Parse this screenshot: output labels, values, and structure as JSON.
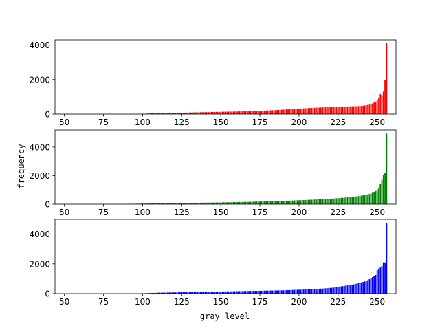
{
  "figure": {
    "xlabel": "gray level",
    "ylabel": "frequency"
  },
  "chart_data": [
    {
      "type": "bar",
      "color": "#ff0000",
      "xlim": [
        44,
        262
      ],
      "ylim": [
        0,
        4300
      ],
      "xticks": [
        50,
        75,
        100,
        125,
        150,
        175,
        200,
        225,
        250
      ],
      "yticks": [
        0,
        2000,
        4000
      ],
      "profile": [
        [
          97,
          0
        ],
        [
          100,
          10
        ],
        [
          105,
          40
        ],
        [
          110,
          55
        ],
        [
          120,
          70
        ],
        [
          130,
          90
        ],
        [
          150,
          130
        ],
        [
          170,
          170
        ],
        [
          185,
          230
        ],
        [
          200,
          320
        ],
        [
          215,
          390
        ],
        [
          230,
          440
        ],
        [
          240,
          470
        ],
        [
          246,
          560
        ],
        [
          249,
          720
        ],
        [
          251,
          950
        ],
        [
          252,
          1150
        ],
        [
          253,
          1100
        ],
        [
          254,
          1300
        ],
        [
          255,
          1950
        ],
        [
          256,
          4100
        ]
      ],
      "x_range": [
        97,
        256
      ]
    },
    {
      "type": "bar",
      "color": "#008000",
      "xlim": [
        44,
        262
      ],
      "ylim": [
        0,
        5200
      ],
      "xticks": [
        50,
        75,
        100,
        125,
        150,
        175,
        200,
        225,
        250
      ],
      "yticks": [
        0,
        2000,
        4000
      ],
      "profile": [
        [
          84,
          0
        ],
        [
          90,
          10
        ],
        [
          100,
          40
        ],
        [
          110,
          55
        ],
        [
          125,
          80
        ],
        [
          150,
          120
        ],
        [
          170,
          170
        ],
        [
          190,
          230
        ],
        [
          205,
          300
        ],
        [
          215,
          350
        ],
        [
          225,
          420
        ],
        [
          235,
          520
        ],
        [
          243,
          650
        ],
        [
          246,
          750
        ],
        [
          248,
          850
        ],
        [
          250,
          1000
        ],
        [
          251,
          1150
        ],
        [
          252,
          1400
        ],
        [
          253,
          1700
        ],
        [
          254,
          2050
        ],
        [
          255,
          2200
        ],
        [
          256,
          4950
        ]
      ],
      "x_range": [
        84,
        256
      ]
    },
    {
      "type": "bar",
      "color": "#0000ff",
      "xlim": [
        44,
        262
      ],
      "ylim": [
        0,
        5000
      ],
      "xticks": [
        50,
        75,
        100,
        125,
        150,
        175,
        200,
        225,
        250
      ],
      "yticks": [
        0,
        2000,
        4000
      ],
      "profile": [
        [
          97,
          0
        ],
        [
          100,
          20
        ],
        [
          110,
          60
        ],
        [
          125,
          90
        ],
        [
          150,
          140
        ],
        [
          170,
          180
        ],
        [
          190,
          220
        ],
        [
          205,
          280
        ],
        [
          215,
          340
        ],
        [
          222,
          400
        ],
        [
          228,
          500
        ],
        [
          234,
          600
        ],
        [
          240,
          750
        ],
        [
          244,
          900
        ],
        [
          247,
          1100
        ],
        [
          249,
          1250
        ],
        [
          250,
          1600
        ],
        [
          252,
          1750
        ],
        [
          253,
          1850
        ],
        [
          254,
          2100
        ],
        [
          255,
          2100
        ],
        [
          256,
          4750
        ]
      ],
      "x_range": [
        97,
        256
      ]
    }
  ]
}
